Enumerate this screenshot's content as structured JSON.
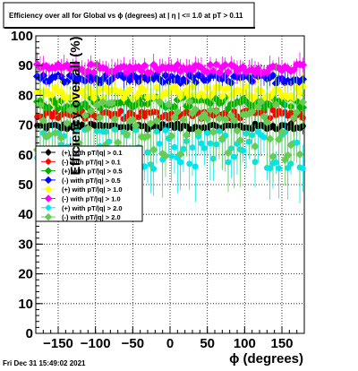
{
  "title": "Efficiency over all for Global vs ϕ (degrees) at |   η | <= 1.0 at pT > 0.11",
  "timestamp": "Fri Dec 31 15:49:02 2021",
  "chart_data": {
    "type": "scatter",
    "xlabel": "ϕ (degrees)",
    "ylabel": "Efficiency over all (%)",
    "xlim": [
      -180,
      180
    ],
    "ylim": [
      0,
      100
    ],
    "x_ticks": [
      -150,
      -100,
      -50,
      0,
      50,
      100,
      150
    ],
    "x_tick_labels": [
      "−150",
      "−100",
      "−50",
      "0",
      "50",
      "100",
      "150"
    ],
    "y_ticks": [
      0,
      10,
      20,
      30,
      40,
      50,
      60,
      70,
      80,
      90,
      100
    ],
    "y_tick_labels": [
      "0",
      "10",
      "20",
      "30",
      "40",
      "50",
      "60",
      "70",
      "80",
      "90",
      "100"
    ],
    "grid": true,
    "legend_position": "left-middle",
    "series": [
      {
        "name": "(+) with pT/|q| > 0.1",
        "color": "#000000",
        "level": 69.5,
        "spread": 1.0,
        "err": 2,
        "marker": "circle"
      },
      {
        "name": "(-) with pT/|q| > 0.1",
        "color": "#ff0000",
        "level": 73.5,
        "spread": 1.5,
        "err": 3,
        "marker": "circle"
      },
      {
        "name": "(+) with pT/|q| > 0.5",
        "color": "#00b000",
        "level": 77.5,
        "spread": 2.0,
        "err": 4,
        "marker": "diamond"
      },
      {
        "name": "(-) with pT/|q| > 0.5",
        "color": "#0000ff",
        "level": 85.5,
        "spread": 1.5,
        "err": 3,
        "marker": "diamond"
      },
      {
        "name": "(+) with pT/|q| > 1.0",
        "color": "#ffff00",
        "level": 81.0,
        "spread": 2.0,
        "err": 4,
        "marker": "diamond"
      },
      {
        "name": "(-) with pT/|q| > 1.0",
        "color": "#ff00ff",
        "level": 89.0,
        "spread": 1.5,
        "err": 3,
        "marker": "diamond"
      },
      {
        "name": "(+) with pT/|q| > 2.0",
        "color": "#00e5ee",
        "level": 62.0,
        "spread": 7.0,
        "err": 9,
        "marker": "circle"
      },
      {
        "name": "(-) with pT/|q| > 2.0",
        "color": "#66cc55",
        "level": 68.0,
        "spread": 10.0,
        "err": 12,
        "marker": "diamond"
      }
    ]
  }
}
